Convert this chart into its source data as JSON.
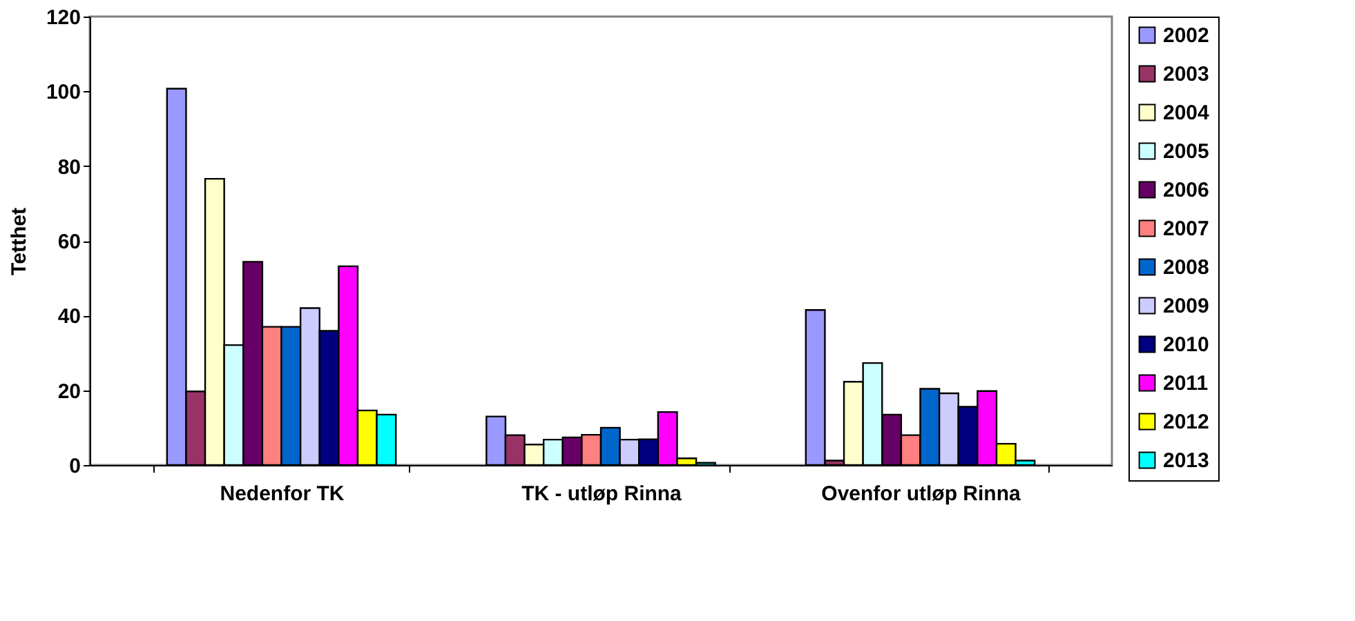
{
  "chart_data": {
    "type": "bar",
    "ylabel": "Tetthet",
    "categories": [
      "Nedenfor TK",
      "TK - utløp Rinna",
      "Ovenfor utløp Rinna"
    ],
    "series": [
      {
        "name": "2002",
        "color": "#9999ff",
        "values": [
          100.7,
          13.0,
          41.5
        ]
      },
      {
        "name": "2003",
        "color": "#993366",
        "values": [
          19.7,
          8.0,
          1.2
        ]
      },
      {
        "name": "2004",
        "color": "#ffffcc",
        "values": [
          76.6,
          5.5,
          22.3
        ]
      },
      {
        "name": "2005",
        "color": "#ccffff",
        "values": [
          32.1,
          6.8,
          27.3
        ]
      },
      {
        "name": "2006",
        "color": "#660066",
        "values": [
          54.4,
          7.4,
          13.5
        ]
      },
      {
        "name": "2007",
        "color": "#ff8080",
        "values": [
          37.0,
          8.1,
          8.0
        ]
      },
      {
        "name": "2008",
        "color": "#0066cc",
        "values": [
          37.0,
          10.0,
          20.4
        ]
      },
      {
        "name": "2009",
        "color": "#ccccff",
        "values": [
          42.0,
          6.8,
          19.2
        ]
      },
      {
        "name": "2010",
        "color": "#000080",
        "values": [
          35.9,
          6.9,
          15.6
        ]
      },
      {
        "name": "2011",
        "color": "#ff00ff",
        "values": [
          53.2,
          14.2,
          19.8
        ]
      },
      {
        "name": "2012",
        "color": "#ffff00",
        "values": [
          14.6,
          1.8,
          5.7
        ]
      },
      {
        "name": "2013",
        "color": "#00ffff",
        "values": [
          13.5,
          0.6,
          1.2
        ]
      }
    ],
    "ylim": [
      0,
      120
    ],
    "yticks": [
      0,
      20,
      40,
      60,
      80,
      100,
      120
    ],
    "grid": false,
    "legend": "right"
  }
}
